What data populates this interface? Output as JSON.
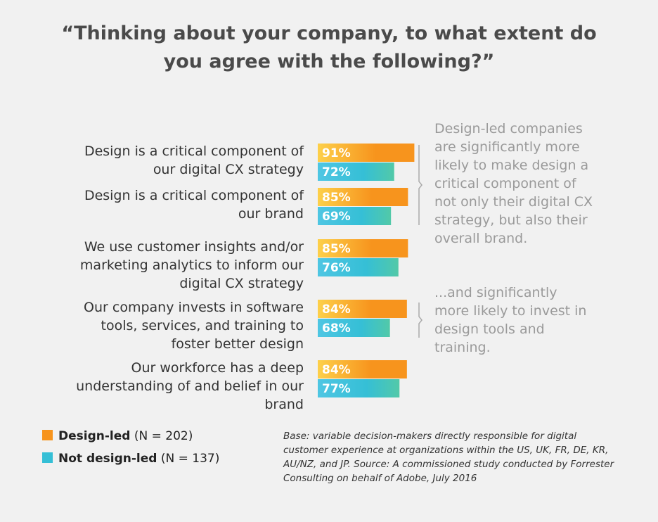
{
  "chart_data": {
    "type": "bar",
    "orientation": "horizontal",
    "title": "“Thinking about your company, to what extent do you agree with the following?”",
    "categories": [
      "Design is a critical component of our digital CX strategy",
      "Design is a critical component of our brand",
      "We use customer insights and/or marketing analytics to inform our digital CX strategy",
      "Our company invests in software tools, services, and training to foster better design",
      "Our workforce has a deep understanding of and belief in our brand"
    ],
    "series": [
      {
        "name": "Design-led",
        "legend_note": "(N = 202)",
        "color": "#f7941d",
        "values": [
          91,
          85,
          85,
          84,
          84
        ],
        "value_labels": [
          "91%",
          "85%",
          "85%",
          "84%",
          "84%"
        ]
      },
      {
        "name": "Not design-led",
        "legend_note": "(N = 137)",
        "color": "#35bfd6",
        "values": [
          72,
          69,
          76,
          68,
          77
        ],
        "value_labels": [
          "72%",
          "69%",
          "76%",
          "68%",
          "77%"
        ]
      }
    ],
    "annotations": [
      "Design-led companies are significantly more likely to make design a critical component of not only their digital CX strategy, but also their overall brand.",
      "...and significantly more likely to invest in design tools and training."
    ],
    "footnote": "Base: variable decision-makers directly responsible for digital customer experience at organizations within the US, UK, FR, DE, KR, AU/NZ, and JP. Source: A commissioned study conducted by Forrester Consulting on behalf of Adobe, July 2016"
  }
}
